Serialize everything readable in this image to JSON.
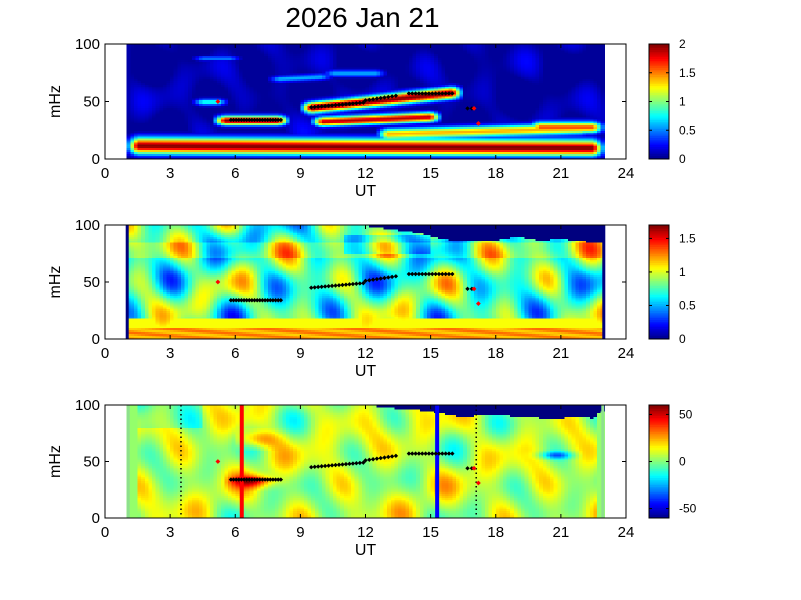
{
  "title": "2026 Jan 21",
  "colors": {
    "fill_value": "#00007f",
    "jet_stops": [
      "#00007f",
      "#0000ff",
      "#007fff",
      "#00ffff",
      "#7fff7f",
      "#ffff00",
      "#ff7f00",
      "#ff0000",
      "#7f0000"
    ],
    "marker_black": "#000000",
    "marker_red": "#ff0000",
    "line_red": "#ff0000",
    "line_blue": "#0000ff"
  },
  "chart_data": [
    {
      "type": "heatmap",
      "xlabel": "UT",
      "ylabel": "mHz",
      "xlim": [
        0,
        24
      ],
      "ylim": [
        0,
        100
      ],
      "xticks": [
        "0",
        "3",
        "6",
        "9",
        "12",
        "15",
        "18",
        "21",
        "24"
      ],
      "yticks": [
        "0",
        "50",
        "100"
      ],
      "data_range_ut": [
        1.0,
        23.0
      ],
      "colorbar": {
        "range": [
          0,
          2
        ],
        "ticks": [
          "0",
          "0.5",
          "1",
          "1.5",
          "2"
        ]
      },
      "background": "dark blue",
      "bands": [
        {
          "f_start": 12,
          "f_end": 10,
          "ut_start": 1.5,
          "ut_end": 22.5,
          "width": 7,
          "value": 2.0
        },
        {
          "f_start": 22,
          "f_end": 27,
          "ut_start": 13,
          "ut_end": 22,
          "width": 5,
          "value": 1.4
        },
        {
          "f_start": 34,
          "f_end": 34,
          "ut_start": 5.5,
          "ut_end": 8,
          "width": 4,
          "value": 2.0
        },
        {
          "f_start": 33,
          "f_end": 37,
          "ut_start": 10,
          "ut_end": 15,
          "width": 4,
          "value": 1.9
        },
        {
          "f_start": 45,
          "f_end": 58,
          "ut_start": 9.5,
          "ut_end": 16,
          "width": 5,
          "value": 2.0
        },
        {
          "f_start": 70,
          "f_end": 72,
          "ut_start": 8,
          "ut_end": 10,
          "width": 3,
          "value": 0.6
        },
        {
          "f_start": 75,
          "f_end": 75,
          "ut_start": 10.5,
          "ut_end": 12.5,
          "width": 3,
          "value": 0.6
        },
        {
          "f_start": 50,
          "f_end": 50,
          "ut_start": 4.5,
          "ut_end": 5.2,
          "width": 3,
          "value": 0.8
        },
        {
          "f_start": 88,
          "f_end": 88,
          "ut_start": 4.5,
          "ut_end": 5.8,
          "width": 2,
          "value": 0.5
        },
        {
          "f_start": 28,
          "f_end": 28,
          "ut_start": 20,
          "ut_end": 22.5,
          "width": 5,
          "value": 1.6
        }
      ]
    },
    {
      "type": "heatmap",
      "xlabel": "UT",
      "ylabel": "mHz",
      "xlim": [
        0,
        24
      ],
      "ylim": [
        0,
        100
      ],
      "xticks": [
        "0",
        "3",
        "6",
        "9",
        "12",
        "15",
        "18",
        "21",
        "24"
      ],
      "yticks": [
        "0",
        "50",
        "100"
      ],
      "data_range_ut": [
        1.0,
        23.0
      ],
      "colorbar": {
        "range": [
          0,
          1.7
        ],
        "ticks": [
          "0",
          "0.5",
          "1",
          "1.5"
        ]
      },
      "background": "mixed cyan-green-yellow coherence field; orange band below 10 mHz",
      "upper_cutoff_mhz": [
        [
          12.0,
          100
        ],
        [
          12.5,
          98
        ],
        [
          13.5,
          96
        ],
        [
          14.5,
          93
        ],
        [
          15.5,
          88
        ],
        [
          16.5,
          86
        ],
        [
          18.0,
          87
        ],
        [
          19.0,
          90
        ],
        [
          20.0,
          87
        ],
        [
          21.0,
          88
        ],
        [
          22.0,
          86
        ],
        [
          23.0,
          84
        ]
      ]
    },
    {
      "type": "heatmap",
      "xlabel": "UT",
      "ylabel": "mHz",
      "xlim": [
        0,
        24
      ],
      "ylim": [
        0,
        100
      ],
      "xticks": [
        "0",
        "3",
        "6",
        "9",
        "12",
        "15",
        "18",
        "21",
        "24"
      ],
      "yticks": [
        "0",
        "50",
        "100"
      ],
      "data_range_ut": [
        1.0,
        23.0
      ],
      "colorbar": {
        "range": [
          -60,
          60
        ],
        "ticks": [
          "-50",
          "0",
          "50"
        ]
      },
      "background": "light yellow-green phase field",
      "upper_cutoff_mhz": [
        [
          12.0,
          100
        ],
        [
          12.5,
          99
        ],
        [
          13.5,
          97
        ],
        [
          14.5,
          96
        ],
        [
          15.5,
          93
        ],
        [
          16.5,
          90
        ],
        [
          17.5,
          92
        ],
        [
          18.5,
          91
        ],
        [
          19.5,
          90
        ],
        [
          20.5,
          88
        ],
        [
          21.5,
          90
        ],
        [
          22.5,
          89
        ],
        [
          23.0,
          96
        ]
      ],
      "vertical_lines": [
        {
          "ut": 6.3,
          "color": "red",
          "style": "solid"
        },
        {
          "ut": 15.3,
          "color": "blue",
          "style": "solid"
        },
        {
          "ut": 3.5,
          "color": "black",
          "style": "dotted"
        },
        {
          "ut": 17.1,
          "color": "black",
          "style": "dotted"
        }
      ]
    }
  ],
  "markers": {
    "description": "Detected frequency tracks overlaid on all three panels",
    "black_tracks": [
      {
        "ut_start": 5.8,
        "ut_end": 8.1,
        "f_start": 34,
        "f_end": 34,
        "count": 20
      },
      {
        "ut_start": 9.5,
        "ut_end": 11.9,
        "f_start": 45,
        "f_end": 49,
        "count": 16
      },
      {
        "ut_start": 12.0,
        "ut_end": 13.4,
        "f_start": 51,
        "f_end": 55,
        "count": 9
      },
      {
        "ut_start": 14.0,
        "ut_end": 16.0,
        "f_start": 57,
        "f_end": 57,
        "count": 14
      },
      {
        "ut_start": 16.7,
        "ut_end": 16.9,
        "f_start": 44,
        "f_end": 44,
        "count": 2
      }
    ],
    "red_points": [
      {
        "ut": 5.2,
        "f": 50
      },
      {
        "ut": 17.0,
        "f": 44
      },
      {
        "ut": 17.2,
        "f": 31
      }
    ]
  }
}
